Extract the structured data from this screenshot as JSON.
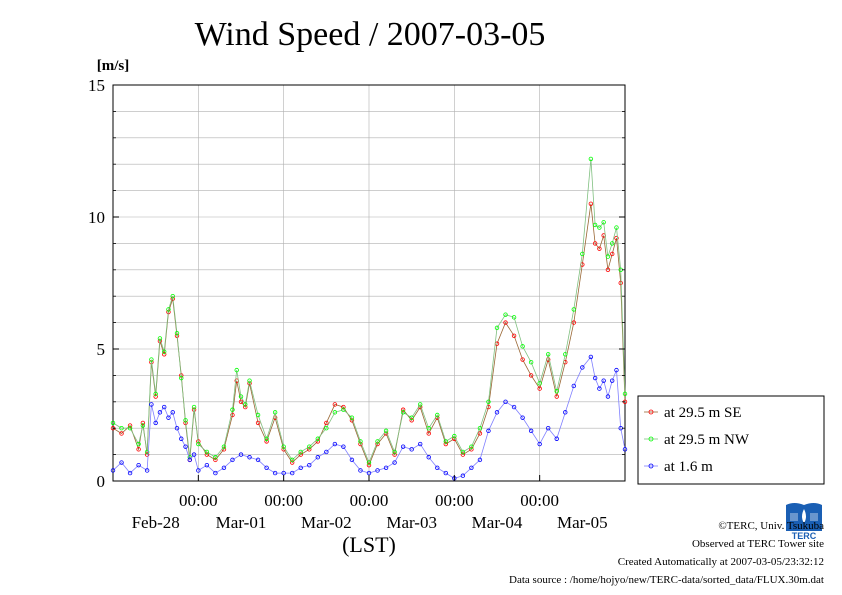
{
  "chart_data": {
    "type": "line",
    "title": "Wind Speed / 2007-03-05",
    "ylabel": "[m/s]",
    "xlabel": "(LST)",
    "ylim": [
      0,
      15
    ],
    "yticks": [
      "0",
      "5",
      "10",
      "15"
    ],
    "xlim_days": [
      0,
      6.0
    ],
    "x_tick_time": "00:00",
    "x_tick_dates": [
      "Feb-28",
      "Mar-01",
      "Mar-02",
      "Mar-03",
      "Mar-04",
      "Mar-05"
    ],
    "x_tick_positions": [
      1,
      2,
      3,
      4,
      5
    ],
    "x_date_positions": [
      0.5,
      1.5,
      2.5,
      3.5,
      4.5,
      5.5
    ],
    "grid": true,
    "legend_position": "right",
    "series": [
      {
        "name": "at 29.5 m SE",
        "color": "#ff0000",
        "line_color": "#996633",
        "values": [
          [
            0.0,
            2.0
          ],
          [
            0.1,
            1.8
          ],
          [
            0.2,
            2.1
          ],
          [
            0.3,
            1.2
          ],
          [
            0.35,
            2.2
          ],
          [
            0.4,
            1.0
          ],
          [
            0.45,
            4.5
          ],
          [
            0.5,
            3.2
          ],
          [
            0.55,
            5.3
          ],
          [
            0.6,
            4.8
          ],
          [
            0.65,
            6.4
          ],
          [
            0.7,
            6.9
          ],
          [
            0.75,
            5.5
          ],
          [
            0.8,
            4.0
          ],
          [
            0.85,
            2.2
          ],
          [
            0.9,
            0.8
          ],
          [
            0.95,
            2.7
          ],
          [
            1.0,
            1.5
          ],
          [
            1.1,
            1.0
          ],
          [
            1.2,
            0.8
          ],
          [
            1.3,
            1.2
          ],
          [
            1.4,
            2.5
          ],
          [
            1.45,
            3.8
          ],
          [
            1.5,
            3.0
          ],
          [
            1.55,
            2.8
          ],
          [
            1.6,
            3.7
          ],
          [
            1.7,
            2.2
          ],
          [
            1.8,
            1.5
          ],
          [
            1.9,
            2.4
          ],
          [
            2.0,
            1.2
          ],
          [
            2.1,
            0.7
          ],
          [
            2.2,
            1.0
          ],
          [
            2.3,
            1.2
          ],
          [
            2.4,
            1.5
          ],
          [
            2.5,
            2.2
          ],
          [
            2.6,
            2.9
          ],
          [
            2.7,
            2.8
          ],
          [
            2.8,
            2.3
          ],
          [
            2.9,
            1.4
          ],
          [
            3.0,
            0.6
          ],
          [
            3.1,
            1.4
          ],
          [
            3.2,
            1.8
          ],
          [
            3.3,
            1.0
          ],
          [
            3.4,
            2.7
          ],
          [
            3.5,
            2.3
          ],
          [
            3.6,
            2.8
          ],
          [
            3.7,
            1.8
          ],
          [
            3.8,
            2.4
          ],
          [
            3.9,
            1.4
          ],
          [
            4.0,
            1.6
          ],
          [
            4.1,
            1.0
          ],
          [
            4.2,
            1.2
          ],
          [
            4.3,
            1.8
          ],
          [
            4.4,
            2.8
          ],
          [
            4.5,
            5.2
          ],
          [
            4.6,
            6.0
          ],
          [
            4.7,
            5.5
          ],
          [
            4.8,
            4.6
          ],
          [
            4.9,
            4.0
          ],
          [
            5.0,
            3.5
          ],
          [
            5.1,
            4.6
          ],
          [
            5.2,
            3.2
          ],
          [
            5.3,
            4.5
          ],
          [
            5.4,
            6.0
          ],
          [
            5.5,
            8.2
          ],
          [
            5.6,
            10.5
          ],
          [
            5.65,
            9.0
          ],
          [
            5.7,
            8.8
          ],
          [
            5.75,
            9.3
          ],
          [
            5.8,
            8.0
          ],
          [
            5.85,
            8.6
          ],
          [
            5.9,
            9.2
          ],
          [
            5.95,
            7.5
          ],
          [
            6.0,
            3.0
          ]
        ]
      },
      {
        "name": "at 29.5 m NW",
        "color": "#00ff00",
        "line_color": "#80c080",
        "values": [
          [
            0.0,
            2.2
          ],
          [
            0.1,
            2.0
          ],
          [
            0.2,
            2.0
          ],
          [
            0.3,
            1.4
          ],
          [
            0.35,
            2.1
          ],
          [
            0.4,
            1.1
          ],
          [
            0.45,
            4.6
          ],
          [
            0.5,
            3.3
          ],
          [
            0.55,
            5.4
          ],
          [
            0.6,
            4.9
          ],
          [
            0.65,
            6.5
          ],
          [
            0.7,
            7.0
          ],
          [
            0.75,
            5.6
          ],
          [
            0.8,
            3.9
          ],
          [
            0.85,
            2.3
          ],
          [
            0.9,
            0.9
          ],
          [
            0.95,
            2.8
          ],
          [
            1.0,
            1.4
          ],
          [
            1.1,
            1.1
          ],
          [
            1.2,
            0.9
          ],
          [
            1.3,
            1.3
          ],
          [
            1.4,
            2.7
          ],
          [
            1.45,
            4.2
          ],
          [
            1.5,
            3.2
          ],
          [
            1.55,
            2.9
          ],
          [
            1.6,
            3.8
          ],
          [
            1.7,
            2.5
          ],
          [
            1.8,
            1.6
          ],
          [
            1.9,
            2.6
          ],
          [
            2.0,
            1.3
          ],
          [
            2.1,
            0.8
          ],
          [
            2.2,
            1.1
          ],
          [
            2.3,
            1.3
          ],
          [
            2.4,
            1.6
          ],
          [
            2.5,
            2.0
          ],
          [
            2.6,
            2.6
          ],
          [
            2.7,
            2.7
          ],
          [
            2.8,
            2.4
          ],
          [
            2.9,
            1.5
          ],
          [
            3.0,
            0.7
          ],
          [
            3.1,
            1.5
          ],
          [
            3.2,
            1.9
          ],
          [
            3.3,
            1.1
          ],
          [
            3.4,
            2.6
          ],
          [
            3.5,
            2.4
          ],
          [
            3.6,
            2.9
          ],
          [
            3.7,
            2.0
          ],
          [
            3.8,
            2.5
          ],
          [
            3.9,
            1.5
          ],
          [
            4.0,
            1.7
          ],
          [
            4.1,
            1.1
          ],
          [
            4.2,
            1.3
          ],
          [
            4.3,
            2.0
          ],
          [
            4.4,
            3.0
          ],
          [
            4.5,
            5.8
          ],
          [
            4.6,
            6.3
          ],
          [
            4.7,
            6.2
          ],
          [
            4.8,
            5.1
          ],
          [
            4.9,
            4.5
          ],
          [
            5.0,
            3.7
          ],
          [
            5.1,
            4.8
          ],
          [
            5.2,
            3.4
          ],
          [
            5.3,
            4.8
          ],
          [
            5.4,
            6.5
          ],
          [
            5.5,
            8.6
          ],
          [
            5.6,
            12.2
          ],
          [
            5.65,
            9.7
          ],
          [
            5.7,
            9.6
          ],
          [
            5.75,
            9.8
          ],
          [
            5.8,
            8.5
          ],
          [
            5.85,
            9.0
          ],
          [
            5.9,
            9.6
          ],
          [
            5.95,
            8.0
          ],
          [
            6.0,
            3.3
          ]
        ]
      },
      {
        "name": "at 1.6 m",
        "color": "#0000ff",
        "line_color": "#8080ff",
        "values": [
          [
            0.0,
            0.4
          ],
          [
            0.1,
            0.7
          ],
          [
            0.2,
            0.3
          ],
          [
            0.3,
            0.6
          ],
          [
            0.4,
            0.4
          ],
          [
            0.45,
            2.9
          ],
          [
            0.5,
            2.2
          ],
          [
            0.55,
            2.6
          ],
          [
            0.6,
            2.8
          ],
          [
            0.65,
            2.4
          ],
          [
            0.7,
            2.6
          ],
          [
            0.75,
            2.0
          ],
          [
            0.8,
            1.6
          ],
          [
            0.85,
            1.3
          ],
          [
            0.9,
            0.8
          ],
          [
            0.95,
            1.0
          ],
          [
            1.0,
            0.4
          ],
          [
            1.1,
            0.6
          ],
          [
            1.2,
            0.3
          ],
          [
            1.3,
            0.5
          ],
          [
            1.4,
            0.8
          ],
          [
            1.5,
            1.0
          ],
          [
            1.6,
            0.9
          ],
          [
            1.7,
            0.8
          ],
          [
            1.8,
            0.5
          ],
          [
            1.9,
            0.3
          ],
          [
            2.0,
            0.3
          ],
          [
            2.1,
            0.3
          ],
          [
            2.2,
            0.5
          ],
          [
            2.3,
            0.6
          ],
          [
            2.4,
            0.9
          ],
          [
            2.5,
            1.1
          ],
          [
            2.6,
            1.4
          ],
          [
            2.7,
            1.3
          ],
          [
            2.8,
            0.8
          ],
          [
            2.9,
            0.4
          ],
          [
            3.0,
            0.3
          ],
          [
            3.1,
            0.4
          ],
          [
            3.2,
            0.5
          ],
          [
            3.3,
            0.7
          ],
          [
            3.4,
            1.3
          ],
          [
            3.5,
            1.2
          ],
          [
            3.6,
            1.4
          ],
          [
            3.7,
            0.9
          ],
          [
            3.8,
            0.5
          ],
          [
            3.9,
            0.3
          ],
          [
            4.0,
            0.1
          ],
          [
            4.1,
            0.2
          ],
          [
            4.2,
            0.5
          ],
          [
            4.3,
            0.8
          ],
          [
            4.4,
            1.9
          ],
          [
            4.5,
            2.6
          ],
          [
            4.6,
            3.0
          ],
          [
            4.7,
            2.8
          ],
          [
            4.8,
            2.4
          ],
          [
            4.9,
            1.9
          ],
          [
            5.0,
            1.4
          ],
          [
            5.1,
            2.0
          ],
          [
            5.2,
            1.6
          ],
          [
            5.3,
            2.6
          ],
          [
            5.4,
            3.6
          ],
          [
            5.5,
            4.3
          ],
          [
            5.6,
            4.7
          ],
          [
            5.65,
            3.9
          ],
          [
            5.7,
            3.5
          ],
          [
            5.75,
            3.8
          ],
          [
            5.8,
            3.2
          ],
          [
            5.85,
            3.8
          ],
          [
            5.9,
            4.2
          ],
          [
            5.95,
            2.0
          ],
          [
            6.0,
            1.2
          ]
        ]
      }
    ]
  },
  "footer": {
    "copyright": "©TERC, Univ. Tsukuba",
    "observed": "Observed at TERC Tower site",
    "created": "Created Automatically at 2007-03-05/23:32:12",
    "source": "Data source : /home/hojyo/new/TERC-data/sorted_data/FLUX.30m.dat"
  },
  "logo": {
    "text": "TERC",
    "color": "#1a5fb4"
  }
}
